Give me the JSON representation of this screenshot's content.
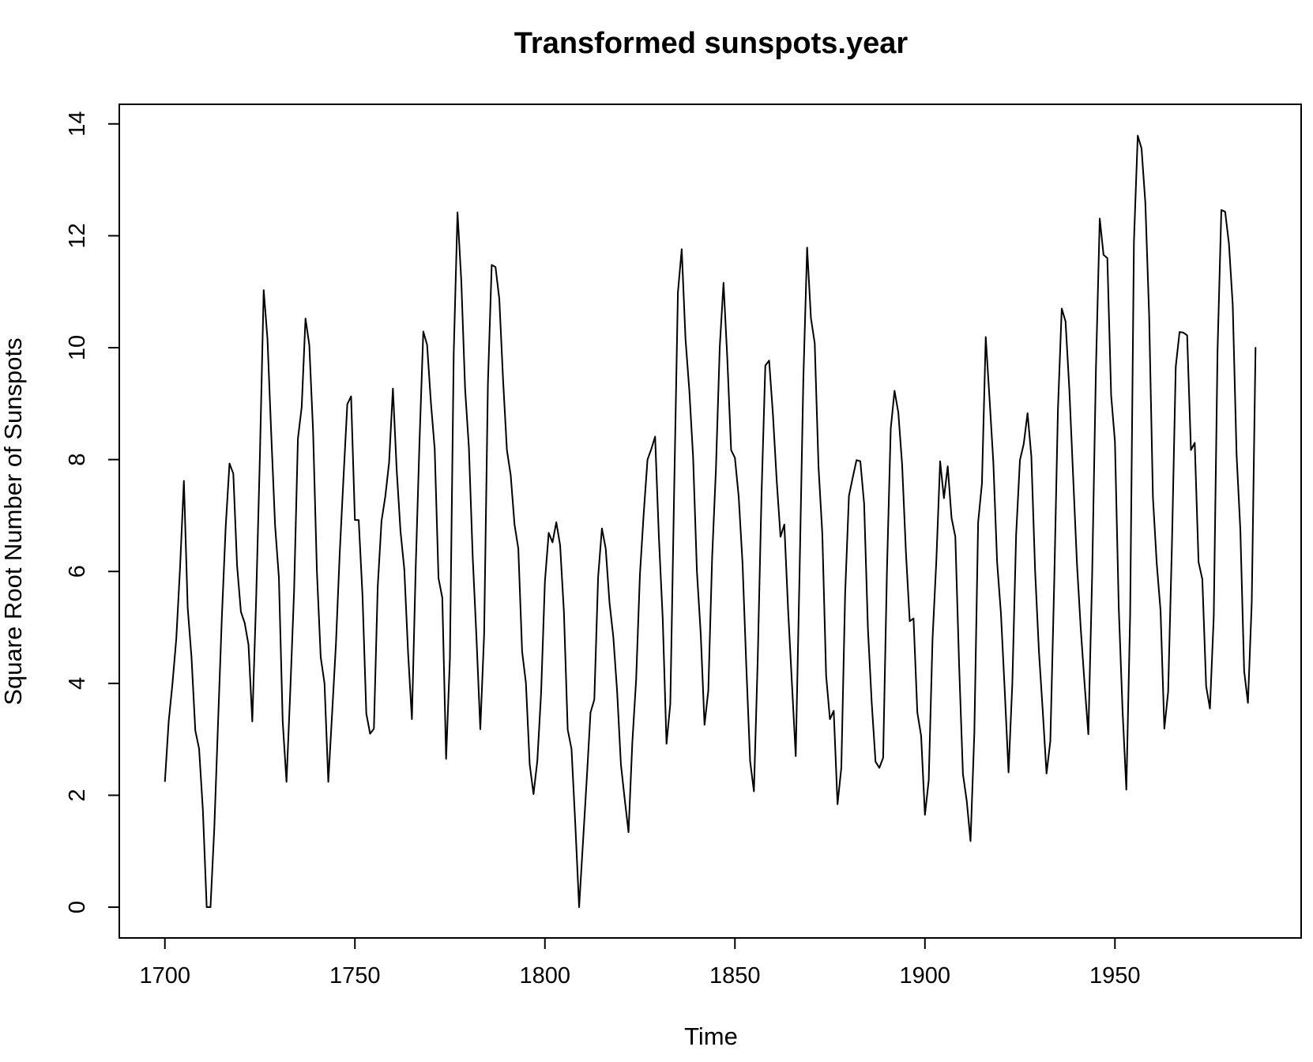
{
  "chart_data": {
    "type": "line",
    "title": "Transformed sunspots.year",
    "xlabel": "Time",
    "ylabel": "Square Root Number of Sunspots",
    "xlim": [
      1688,
      1999
    ],
    "ylim": [
      -0.55,
      14.35
    ],
    "x_ticks": [
      {
        "value": 1700,
        "label": "1700"
      },
      {
        "value": 1750,
        "label": "1750"
      },
      {
        "value": 1800,
        "label": "1800"
      },
      {
        "value": 1850,
        "label": "1850"
      },
      {
        "value": 1900,
        "label": "1900"
      },
      {
        "value": 1950,
        "label": "1950"
      }
    ],
    "y_ticks": [
      {
        "value": 0,
        "label": "0"
      },
      {
        "value": 2,
        "label": "2"
      },
      {
        "value": 4,
        "label": "4"
      },
      {
        "value": 6,
        "label": "6"
      },
      {
        "value": 8,
        "label": "8"
      },
      {
        "value": 10,
        "label": "10"
      },
      {
        "value": 12,
        "label": "12"
      },
      {
        "value": 14,
        "label": "14"
      }
    ],
    "grid": false,
    "legend": "none",
    "line_color": "#000000",
    "x_start": 1700,
    "x_end": 1988,
    "values": [
      2.24,
      3.32,
      4.0,
      4.8,
      6.08,
      7.62,
      5.35,
      4.47,
      3.16,
      2.83,
      1.73,
      0.0,
      0.0,
      1.41,
      3.32,
      5.2,
      6.8,
      7.93,
      7.75,
      6.1,
      5.28,
      5.08,
      4.69,
      3.32,
      5.48,
      8.06,
      11.03,
      10.15,
      8.43,
      6.82,
      5.89,
      3.32,
      2.24,
      3.87,
      5.66,
      8.37,
      8.94,
      10.52,
      10.05,
      8.5,
      6.0,
      4.47,
      4.0,
      2.24,
      3.46,
      4.69,
      6.32,
      7.68,
      8.99,
      9.13,
      6.92,
      6.92,
      5.57,
      3.46,
      3.1,
      3.19,
      5.72,
      6.9,
      7.34,
      7.95,
      9.27,
      7.81,
      6.72,
      6.04,
      4.54,
      3.36,
      6.07,
      8.32,
      10.29,
      10.05,
      9.02,
      8.19,
      5.88,
      5.53,
      2.65,
      4.45,
      9.89,
      12.42,
      11.19,
      9.26,
      8.21,
      6.26,
      4.8,
      3.18,
      4.87,
      9.36,
      11.48,
      11.44,
      10.87,
      9.41,
      8.17,
      7.72,
      6.84,
      6.41,
      4.57,
      4.01,
      2.55,
      2.02,
      2.61,
      3.83,
      5.82,
      6.69,
      6.52,
      6.88,
      6.47,
      5.28,
      3.17,
      2.83,
      1.48,
      0.0,
      1.14,
      2.28,
      3.48,
      3.71,
      5.9,
      6.77,
      6.41,
      5.44,
      4.83,
      3.86,
      2.55,
      1.93,
      1.34,
      2.94,
      4.06,
      5.94,
      7.04,
      8.0,
      8.19,
      8.41,
      6.6,
      5.16,
      2.92,
      3.64,
      7.41,
      10.99,
      11.76,
      10.15,
      9.24,
      8.04,
      6.0,
      4.89,
      3.26,
      3.87,
      6.24,
      7.83,
      10.0,
      11.16,
      9.8,
      8.17,
      8.03,
      7.33,
      6.15,
      4.3,
      2.61,
      2.07,
      4.43,
      7.37,
      9.68,
      9.77,
      8.81,
      7.62,
      6.62,
      6.84,
      5.31,
      4.0,
      2.7,
      5.94,
      9.42,
      11.79,
      10.53,
      10.08,
      7.87,
      6.67,
      4.14,
      3.36,
      3.51,
      1.84,
      2.49,
      5.6,
      7.35,
      7.68,
      7.99,
      7.97,
      7.21,
      4.97,
      3.65,
      2.6,
      2.49,
      2.67,
      6.0,
      8.55,
      9.23,
      8.84,
      7.91,
      6.34,
      5.11,
      5.16,
      3.48,
      3.06,
      1.65,
      2.27,
      4.79,
      6.19,
      7.97,
      7.31,
      7.88,
      6.96,
      6.62,
      4.32,
      2.38,
      1.9,
      1.18,
      3.11,
      6.88,
      7.57,
      10.19,
      9.09,
      7.95,
      6.16,
      5.25,
      3.87,
      2.41,
      4.0,
      6.66,
      7.99,
      8.28,
      8.83,
      8.06,
      6.0,
      4.57,
      3.51,
      2.39,
      2.97,
      5.74,
      8.9,
      10.7,
      10.47,
      9.26,
      7.7,
      6.15,
      4.98,
      4.0,
      3.09,
      5.92,
      9.62,
      12.31,
      11.66,
      11.6,
      9.15,
      8.32,
      5.36,
      3.52,
      2.1,
      5.22,
      11.9,
      13.79,
      13.56,
      12.59,
      10.58,
      7.32,
      6.14,
      5.3,
      3.19,
      3.85,
      6.48,
      9.66,
      10.28,
      10.27,
      10.22,
      8.17,
      8.3,
      6.17,
      5.86,
      3.95,
      3.55,
      5.19,
      9.95,
      12.46,
      12.43,
      11.86,
      10.76,
      8.1,
      6.74,
      4.22,
      3.65,
      5.45,
      10.01
    ]
  }
}
